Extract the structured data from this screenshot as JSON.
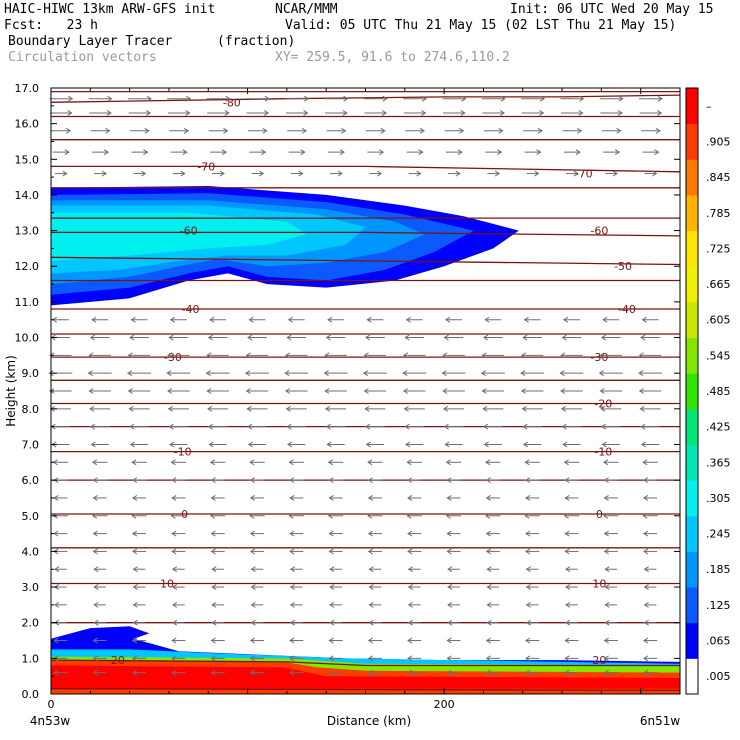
{
  "header": {
    "model": "HAIC-HIWC 13km ARW-GFS init",
    "org": "NCAR/MMM",
    "init": "Init: 06 UTC Wed 20 May 15",
    "fcst": "Fcst:   23 h",
    "valid": "Valid: 05 UTC Thu 21 May 15 (02 LST Thu 21 May 15)",
    "field": "Boundary Layer Tracer",
    "units": "(fraction)",
    "vectors": "Circulation vectors",
    "xy": "XY= 259.5, 91.6 to 274.6,110.2"
  },
  "chart_data": {
    "type": "heatmap",
    "ylabel": "Height (km)",
    "xlabel": "Distance (km)",
    "xlim": [
      0,
      320
    ],
    "ylim": [
      0,
      17
    ],
    "x_left_label": "4n53w",
    "x_right_label": "6n51w",
    "x_ticks": [
      {
        "v": 0,
        "label": "0"
      },
      {
        "v": 200,
        "label": "200"
      }
    ],
    "y_ticks": [
      "0.0",
      "1.0",
      "2.0",
      "3.0",
      "4.0",
      "5.0",
      "6.0",
      "7.0",
      "8.0",
      "9.0",
      "10.0",
      "11.0",
      "12.0",
      "13.0",
      "14.0",
      "15.0",
      "16.0",
      "17.0"
    ],
    "colorbar": {
      "labels": [
        ".005",
        ".065",
        ".125",
        ".185",
        ".245",
        ".305",
        ".365",
        ".425",
        ".485",
        ".545",
        ".605",
        ".665",
        ".725",
        ".785",
        ".845",
        ".905",
        "–"
      ],
      "colors": [
        "#ffffff",
        "#0000ff",
        "#0a5aff",
        "#0096ff",
        "#00c8ff",
        "#00f0f0",
        "#00e6b4",
        "#00e678",
        "#32e600",
        "#82e600",
        "#c8e600",
        "#f0f000",
        "#ffe600",
        "#ffb400",
        "#ff7800",
        "#ff3c00",
        "#ff0000"
      ]
    },
    "tracer_fields": [
      {
        "name": "upper",
        "polys": [
          {
            "level": ".065",
            "pts": [
              [
                0,
                14.2
              ],
              [
                80,
                14.25
              ],
              [
                140,
                14.0
              ],
              [
                180,
                13.7
              ],
              [
                210,
                13.4
              ],
              [
                238,
                13.0
              ],
              [
                225,
                12.5
              ],
              [
                200,
                12.0
              ],
              [
                175,
                11.6
              ],
              [
                140,
                11.4
              ],
              [
                110,
                11.5
              ],
              [
                90,
                11.8
              ],
              [
                70,
                11.6
              ],
              [
                40,
                11.1
              ],
              [
                0,
                10.9
              ]
            ]
          },
          {
            "level": ".125",
            "pts": [
              [
                0,
                14.0
              ],
              [
                80,
                14.05
              ],
              [
                140,
                13.8
              ],
              [
                180,
                13.45
              ],
              [
                215,
                13.0
              ],
              [
                195,
                12.4
              ],
              [
                170,
                11.9
              ],
              [
                140,
                11.6
              ],
              [
                110,
                11.7
              ],
              [
                90,
                12.0
              ],
              [
                70,
                11.8
              ],
              [
                40,
                11.4
              ],
              [
                0,
                11.2
              ]
            ]
          },
          {
            "level": ".185",
            "pts": [
              [
                0,
                13.85
              ],
              [
                80,
                13.85
              ],
              [
                140,
                13.6
              ],
              [
                175,
                13.25
              ],
              [
                190,
                12.9
              ],
              [
                170,
                12.4
              ],
              [
                140,
                12.1
              ],
              [
                110,
                12.0
              ],
              [
                85,
                12.2
              ],
              [
                65,
                12.0
              ],
              [
                40,
                11.7
              ],
              [
                0,
                11.5
              ]
            ]
          },
          {
            "level": ".245",
            "pts": [
              [
                0,
                13.7
              ],
              [
                80,
                13.7
              ],
              [
                135,
                13.45
              ],
              [
                160,
                13.1
              ],
              [
                150,
                12.6
              ],
              [
                120,
                12.3
              ],
              [
                90,
                12.3
              ],
              [
                65,
                12.15
              ],
              [
                35,
                11.9
              ],
              [
                0,
                11.8
              ]
            ]
          },
          {
            "level": ".305",
            "pts": [
              [
                0,
                13.5
              ],
              [
                70,
                13.5
              ],
              [
                120,
                13.25
              ],
              [
                130,
                12.9
              ],
              [
                110,
                12.6
              ],
              [
                80,
                12.5
              ],
              [
                40,
                12.3
              ],
              [
                0,
                12.15
              ]
            ]
          }
        ]
      },
      {
        "name": "lower",
        "polys": [
          {
            "level": ".065",
            "pts": [
              [
                0,
                1.55
              ],
              [
                20,
                1.85
              ],
              [
                40,
                1.9
              ],
              [
                50,
                1.7
              ],
              [
                42,
                1.55
              ],
              [
                65,
                1.2
              ],
              [
                150,
                1.0
              ],
              [
                200,
                0.95
              ],
              [
                260,
                0.95
              ],
              [
                320,
                0.9
              ],
              [
                320,
                0
              ],
              [
                0,
                0
              ]
            ]
          },
          {
            "level": ".245",
            "pts": [
              [
                0,
                1.25
              ],
              [
                40,
                1.25
              ],
              [
                80,
                1.15
              ],
              [
                150,
                1.0
              ],
              [
                320,
                0.85
              ],
              [
                320,
                0
              ],
              [
                0,
                0
              ]
            ]
          },
          {
            "level": ".545",
            "pts": [
              [
                0,
                1.05
              ],
              [
                120,
                1.0
              ],
              [
                160,
                0.85
              ],
              [
                320,
                0.8
              ],
              [
                320,
                0
              ],
              [
                0,
                0
              ]
            ]
          },
          {
            "level": ".905",
            "pts": [
              [
                0,
                0.95
              ],
              [
                118,
                0.9
              ],
              [
                135,
                0.75
              ],
              [
                160,
                0.65
              ],
              [
                320,
                0.6
              ],
              [
                320,
                0
              ],
              [
                0,
                0
              ]
            ]
          },
          {
            "level": "–",
            "pts": [
              [
                0,
                0.8
              ],
              [
                118,
                0.75
              ],
              [
                140,
                0.5
              ],
              [
                320,
                0.45
              ],
              [
                320,
                0.15
              ],
              [
                0,
                0.15
              ]
            ]
          }
        ]
      }
    ],
    "contours": [
      {
        "label": "-80",
        "pts": [
          [
            0,
            16.6
          ],
          [
            120,
            16.7
          ],
          [
            200,
            16.75
          ],
          [
            260,
            16.75
          ],
          [
            320,
            16.8
          ]
        ],
        "label_at": [
          [
            92,
            16.6
          ]
        ]
      },
      {
        "label": "-70",
        "pts": [
          [
            0,
            14.8
          ],
          [
            160,
            14.8
          ],
          [
            320,
            14.65
          ]
        ],
        "label_at": [
          [
            79,
            14.8
          ],
          [
            271,
            14.6
          ]
        ]
      },
      {
        "label": "-60",
        "pts": [
          [
            0,
            12.95
          ],
          [
            160,
            12.95
          ],
          [
            320,
            12.85
          ]
        ],
        "label_at": [
          [
            70,
            13.0
          ],
          [
            279,
            13.0
          ]
        ]
      },
      {
        "label": "-50",
        "pts": [
          [
            0,
            12.25
          ],
          [
            160,
            12.15
          ],
          [
            320,
            12.05
          ]
        ],
        "label_at": [
          [
            291,
            12.0
          ]
        ]
      },
      {
        "label": "-40",
        "pts": [
          [
            0,
            10.8
          ],
          [
            160,
            10.8
          ],
          [
            320,
            10.8
          ]
        ],
        "label_at": [
          [
            71,
            10.8
          ],
          [
            293,
            10.8
          ]
        ]
      },
      {
        "label": "-30",
        "pts": [
          [
            0,
            9.45
          ],
          [
            320,
            9.45
          ]
        ],
        "label_at": [
          [
            62,
            9.45
          ],
          [
            279,
            9.45
          ]
        ]
      },
      {
        "label": "-20",
        "pts": [
          [
            0,
            8.15
          ],
          [
            320,
            8.15
          ]
        ],
        "label_at": [
          [
            281,
            8.15
          ]
        ]
      },
      {
        "label": "-10",
        "pts": [
          [
            0,
            6.8
          ],
          [
            320,
            6.8
          ]
        ],
        "label_at": [
          [
            67,
            6.8
          ],
          [
            281,
            6.8
          ]
        ]
      },
      {
        "label": "0",
        "pts": [
          [
            0,
            5.05
          ],
          [
            320,
            5.05
          ]
        ],
        "label_at": [
          [
            68,
            5.05
          ],
          [
            279,
            5.05
          ]
        ]
      },
      {
        "label": "10",
        "pts": [
          [
            0,
            3.1
          ],
          [
            320,
            3.1
          ]
        ],
        "label_at": [
          [
            59,
            3.1
          ],
          [
            279,
            3.1
          ]
        ]
      },
      {
        "label": "20",
        "pts": [
          [
            0,
            0.95
          ],
          [
            120,
            0.9
          ],
          [
            160,
            0.8
          ],
          [
            320,
            0.8
          ]
        ],
        "label_at": [
          [
            34,
            0.95
          ],
          [
            279,
            0.95
          ]
        ]
      },
      {
        "label": "",
        "pts": [
          [
            0,
            16.9
          ],
          [
            320,
            16.9
          ]
        ],
        "label_at": []
      },
      {
        "label": "",
        "pts": [
          [
            0,
            16.2
          ],
          [
            320,
            16.2
          ]
        ],
        "label_at": []
      },
      {
        "label": "",
        "pts": [
          [
            0,
            15.55
          ],
          [
            320,
            15.55
          ]
        ],
        "label_at": []
      },
      {
        "label": "",
        "pts": [
          [
            0,
            14.2
          ],
          [
            320,
            14.2
          ]
        ],
        "label_at": []
      },
      {
        "label": "",
        "pts": [
          [
            0,
            13.35
          ],
          [
            320,
            13.35
          ]
        ],
        "label_at": []
      },
      {
        "label": "",
        "pts": [
          [
            0,
            11.6
          ],
          [
            320,
            11.6
          ]
        ],
        "label_at": []
      },
      {
        "label": "",
        "pts": [
          [
            0,
            10.1
          ],
          [
            320,
            10.1
          ]
        ],
        "label_at": []
      },
      {
        "label": "",
        "pts": [
          [
            0,
            8.8
          ],
          [
            320,
            8.8
          ]
        ],
        "label_at": []
      },
      {
        "label": "",
        "pts": [
          [
            0,
            7.5
          ],
          [
            320,
            7.5
          ]
        ],
        "label_at": []
      },
      {
        "label": "",
        "pts": [
          [
            0,
            6.0
          ],
          [
            320,
            6.0
          ]
        ],
        "label_at": []
      },
      {
        "label": "",
        "pts": [
          [
            0,
            4.1
          ],
          [
            320,
            4.1
          ]
        ],
        "label_at": []
      },
      {
        "label": "",
        "pts": [
          [
            0,
            2.0
          ],
          [
            320,
            2.0
          ]
        ],
        "label_at": []
      },
      {
        "label": "",
        "pts": [
          [
            0,
            0.15
          ],
          [
            320,
            0.1
          ]
        ],
        "label_at": []
      }
    ],
    "vector_rows": [
      {
        "y": 16.7,
        "u": 1.0
      },
      {
        "y": 16.3,
        "u": 0.9
      },
      {
        "y": 15.8,
        "u": 0.7
      },
      {
        "y": 15.2,
        "u": 0.5
      },
      {
        "y": 14.6,
        "u": 0.2
      },
      {
        "y": 10.5,
        "u": -0.5
      },
      {
        "y": 10.0,
        "u": -0.7
      },
      {
        "y": 9.5,
        "u": -0.9
      },
      {
        "y": 9.0,
        "u": -1.0
      },
      {
        "y": 8.5,
        "u": -0.9
      },
      {
        "y": 8.0,
        "u": -0.8
      },
      {
        "y": 7.5,
        "u": -0.7
      },
      {
        "y": 7.0,
        "u": -0.6
      },
      {
        "y": 6.5,
        "u": -0.4
      },
      {
        "y": 6.0,
        "u": -0.3
      },
      {
        "y": 5.5,
        "u": -0.3
      },
      {
        "y": 5.0,
        "u": -0.4
      },
      {
        "y": 4.5,
        "u": -0.3
      },
      {
        "y": 4.0,
        "u": -0.3
      },
      {
        "y": 3.5,
        "u": -0.2
      },
      {
        "y": 3.0,
        "u": -0.2
      },
      {
        "y": 2.5,
        "u": -0.2
      },
      {
        "y": 2.0,
        "u": -0.2
      },
      {
        "y": 1.5,
        "u": -0.3
      },
      {
        "y": 1.0,
        "u": -0.3
      },
      {
        "y": 0.6,
        "u": -0.3
      }
    ]
  }
}
